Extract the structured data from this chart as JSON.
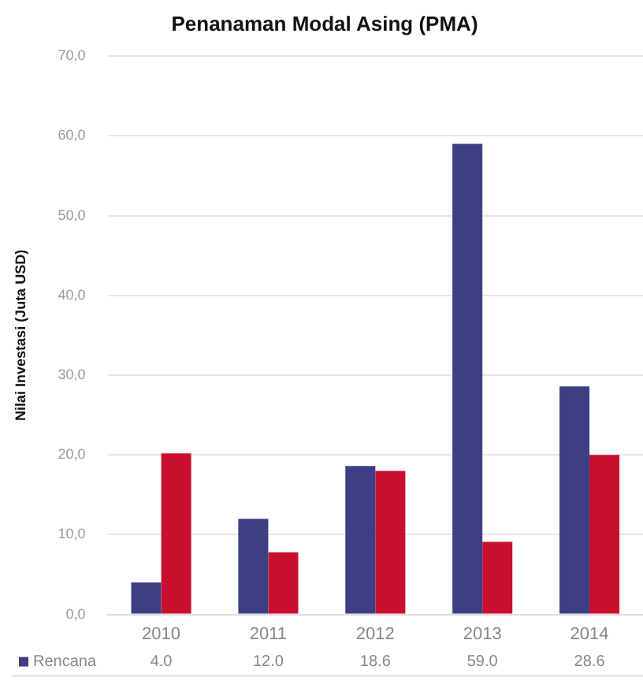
{
  "chart_data": {
    "type": "bar",
    "title": "Penanaman Modal Asing (PMA)",
    "ylabel": "Nilai Investasi (Juta USD)",
    "categories": [
      "2010",
      "2011",
      "2012",
      "2013",
      "2014"
    ],
    "series": [
      {
        "name": "Rencana",
        "color": "#3d3f82",
        "values": [
          4.0,
          12.0,
          18.6,
          59.0,
          28.6
        ],
        "value_labels": [
          "4.0",
          "12.0",
          "18.6",
          "59.0",
          "28.6"
        ]
      },
      {
        "color": "#c8102e",
        "values": [
          20.2,
          7.8,
          18.0,
          9.1,
          20.0
        ]
      }
    ],
    "ylim": [
      0,
      70
    ],
    "yticks": [
      {
        "value": 0,
        "label": "0,0"
      },
      {
        "value": 10,
        "label": "10,0"
      },
      {
        "value": 20,
        "label": "20,0"
      },
      {
        "value": 30,
        "label": "30,0"
      },
      {
        "value": 40,
        "label": "40,0"
      },
      {
        "value": 50,
        "label": "50,0"
      },
      {
        "value": 60,
        "label": "60,0"
      },
      {
        "value": 70,
        "label": "70,0"
      }
    ],
    "grid": "y",
    "legend": "bottom"
  }
}
